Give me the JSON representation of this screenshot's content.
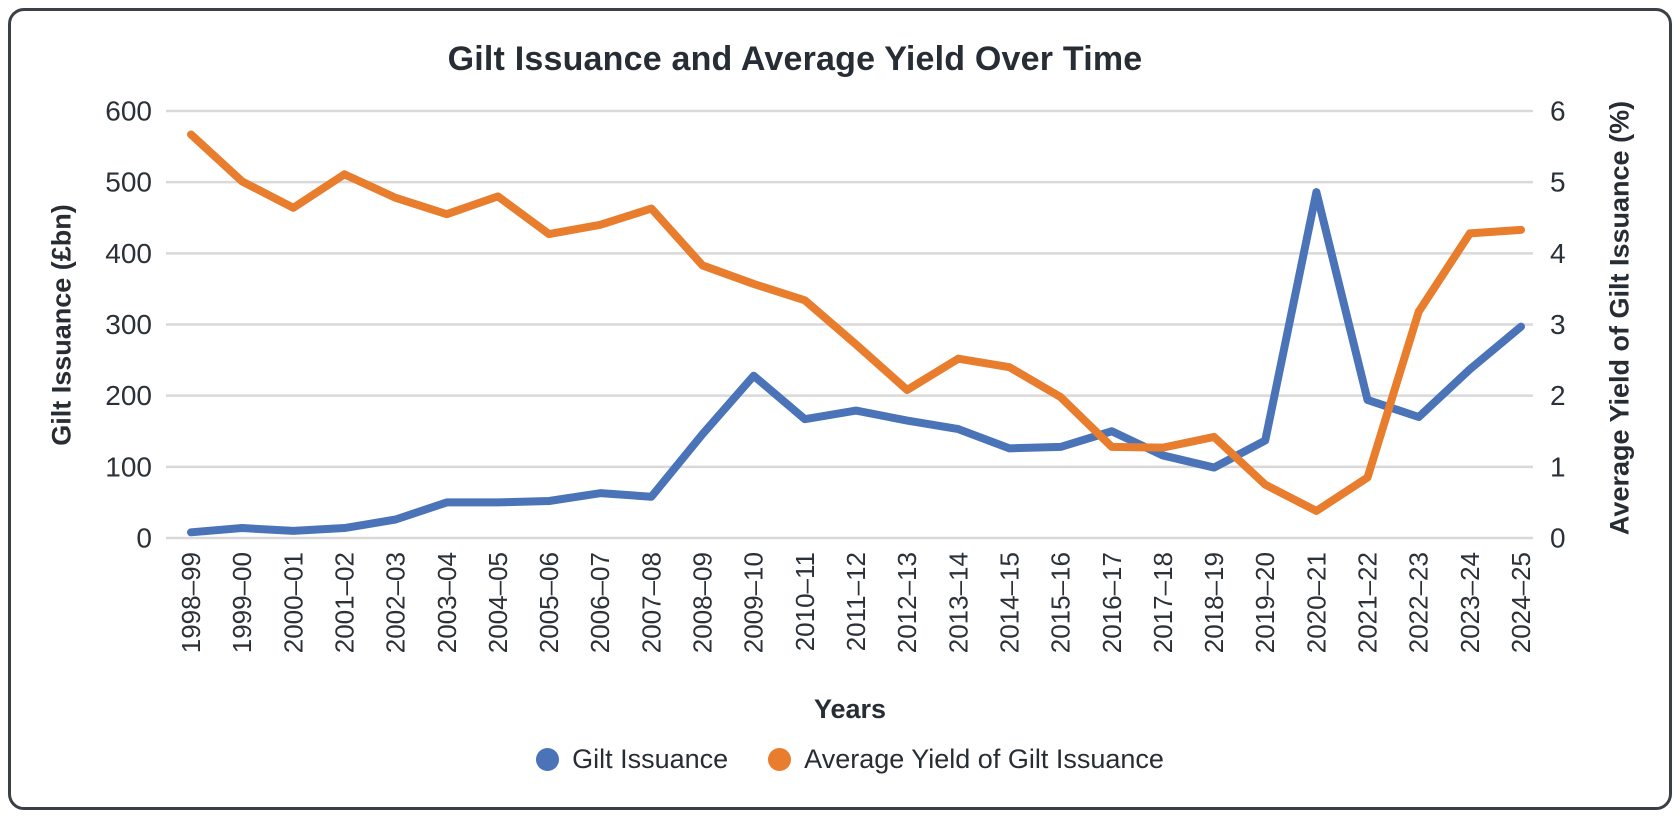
{
  "frame": {
    "border_color": "#3a4045",
    "background": "#ffffff"
  },
  "chart": {
    "title": "Gilt Issuance and Average Yield Over Time",
    "x_axis_title": "Years",
    "y_left_title": "Gilt Issuance (£bn)",
    "y_right_title": "Average Yield of Gilt Issuance (%)",
    "colors": {
      "issuance_line": "#4a73b8",
      "yield_line": "#e87d2e",
      "gridline": "#d9d9d9",
      "text": "#2b3139"
    }
  },
  "legend": {
    "items": [
      {
        "label": "Gilt Issuance",
        "color": "#4a73b8"
      },
      {
        "label": "Average Yield of Gilt Issuance",
        "color": "#e87d2e"
      }
    ]
  },
  "chart_data": {
    "type": "line",
    "title": "Gilt Issuance and Average Yield Over Time",
    "xlabel": "Years",
    "grid": true,
    "legend_position": "bottom",
    "categories": [
      "1998–99",
      "1999–00",
      "2000–01",
      "2001–02",
      "2002–03",
      "2003–04",
      "2004–05",
      "2005–06",
      "2006–07",
      "2007–08",
      "2008–09",
      "2009–10",
      "2010–11",
      "2011–12",
      "2012–13",
      "2013–14",
      "2014–15",
      "2015–16",
      "2016–17",
      "2017–18",
      "2018–19",
      "2019–20",
      "2020–21",
      "2021–22",
      "2022–23",
      "2023–24",
      "2024–25"
    ],
    "left_axis": {
      "label": "Gilt Issuance (£bn)",
      "min": 0,
      "max": 600,
      "ticks": [
        0,
        100,
        200,
        300,
        400,
        500,
        600
      ]
    },
    "right_axis": {
      "label": "Average Yield of Gilt Issuance (%)",
      "min": 0,
      "max": 6,
      "ticks": [
        0,
        1,
        2,
        3,
        4,
        5,
        6
      ]
    },
    "series": [
      {
        "name": "Gilt Issuance",
        "axis": "left",
        "units": "£bn",
        "color": "#4a73b8",
        "values": [
          8,
          14,
          10,
          14,
          26,
          50,
          50,
          52,
          63,
          58,
          146,
          228,
          167,
          179,
          165,
          153,
          126,
          128,
          150,
          116,
          99,
          137,
          486,
          194,
          170,
          237,
          297
        ]
      },
      {
        "name": "Average Yield of Gilt Issuance",
        "axis": "right",
        "units": "%",
        "color": "#e87d2e",
        "values": [
          5.67,
          5.01,
          4.64,
          5.11,
          4.78,
          4.55,
          4.8,
          4.27,
          4.4,
          4.63,
          3.83,
          3.57,
          3.34,
          2.72,
          2.08,
          2.52,
          2.4,
          1.98,
          1.28,
          1.27,
          1.42,
          0.75,
          0.38,
          0.85,
          3.18,
          4.28,
          4.33
        ]
      }
    ]
  }
}
